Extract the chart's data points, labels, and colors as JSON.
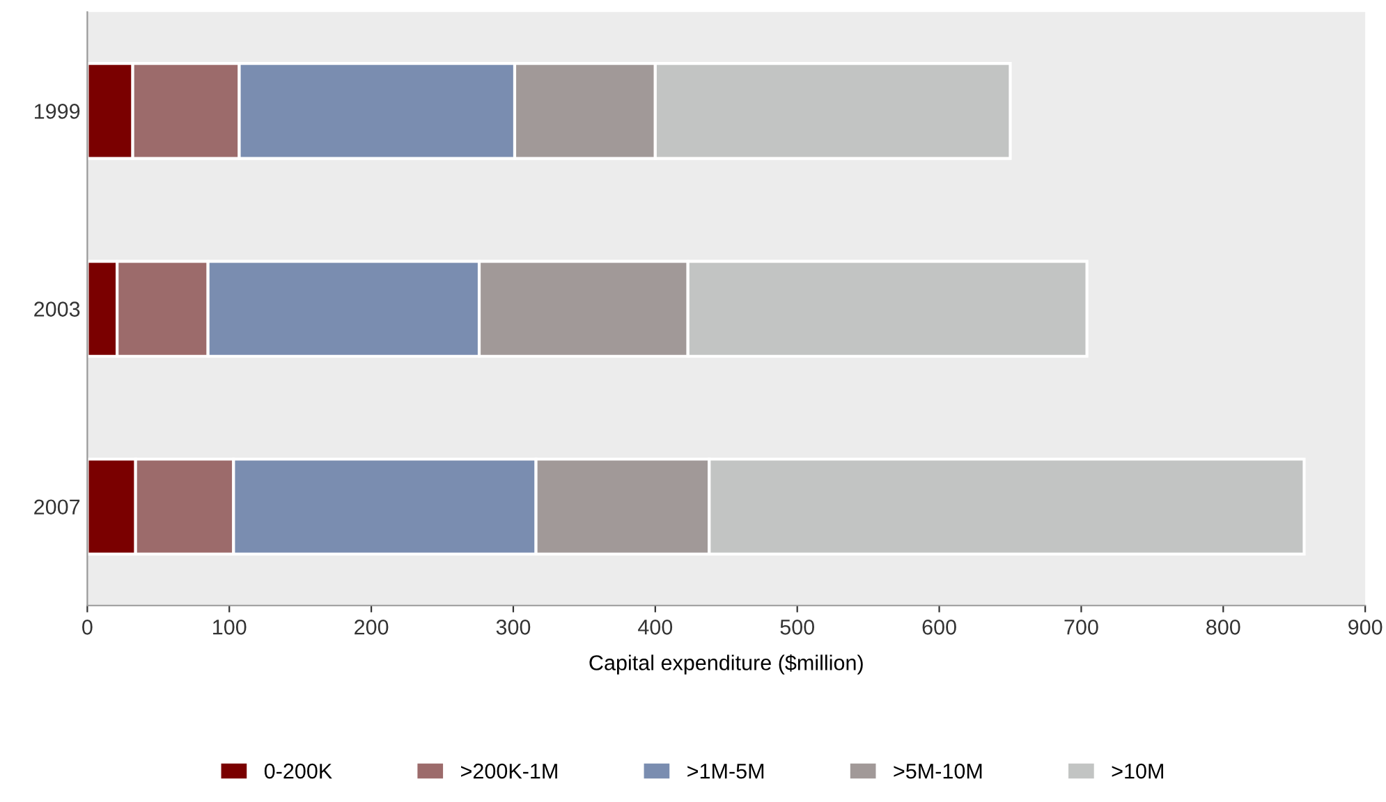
{
  "chart_data": {
    "type": "bar",
    "orientation": "horizontal",
    "stacked": true,
    "xlabel": "Capital expenditure ($million)",
    "categories": [
      "1999",
      "2003",
      "2007"
    ],
    "series": [
      {
        "name": "0-200K",
        "color": "#7a0000",
        "values": [
          32,
          21,
          34
        ]
      },
      {
        "name": ">200K-1M",
        "color": "#9c6b6b",
        "values": [
          75,
          64,
          69
        ]
      },
      {
        "name": ">1M-5M",
        "color": "#7a8db0",
        "values": [
          194,
          191,
          213
        ]
      },
      {
        "name": ">5M-10M",
        "color": "#a19998",
        "values": [
          99,
          147,
          122
        ]
      },
      {
        "name": ">10M",
        "color": "#c2c4c3",
        "values": [
          250,
          281,
          419
        ]
      }
    ],
    "xlim": [
      0,
      900
    ],
    "xticks": [
      0,
      100,
      200,
      300,
      400,
      500,
      600,
      700,
      800,
      900
    ],
    "grid": false,
    "legend": "bottom"
  }
}
